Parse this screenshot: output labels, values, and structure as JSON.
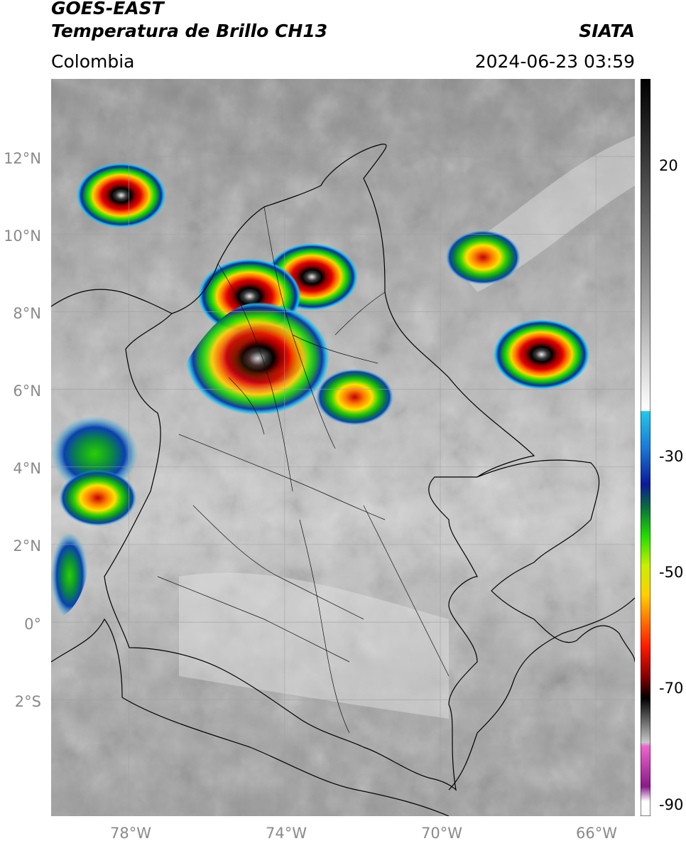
{
  "header": {
    "satellite": "GOES-EAST",
    "product": "Temperatura de Brillo CH13",
    "organization": "SIATA",
    "region": "Colombia",
    "datetime": "2024-06-23 03:59"
  },
  "map": {
    "lat_range": [
      -5,
      14
    ],
    "lon_range": [
      -80,
      -65
    ],
    "lat_ticks": [
      {
        "value": 12,
        "label": "12°N"
      },
      {
        "value": 10,
        "label": "10°N"
      },
      {
        "value": 8,
        "label": "8°N"
      },
      {
        "value": 6,
        "label": "6°N"
      },
      {
        "value": 4,
        "label": "4°N"
      },
      {
        "value": 2,
        "label": "2°N"
      },
      {
        "value": 0,
        "label": "0°"
      },
      {
        "value": -2,
        "label": "2°S"
      }
    ],
    "lon_ticks": [
      {
        "value": -78,
        "label": "78°W"
      },
      {
        "value": -74,
        "label": "74°W"
      },
      {
        "value": -70,
        "label": "70°W"
      },
      {
        "value": -66,
        "label": "66°W"
      }
    ],
    "grid": true
  },
  "colorbar": {
    "range": [
      -92,
      35
    ],
    "ticks": [
      {
        "value": 20,
        "label": "20"
      },
      {
        "value": -30,
        "label": "-30"
      },
      {
        "value": -50,
        "label": "-50"
      },
      {
        "value": -70,
        "label": "-70"
      },
      {
        "value": -90,
        "label": "-90"
      }
    ]
  },
  "storm_cells": [
    {
      "name": "caribbean-cell",
      "lon": -78.2,
      "lat": 11.0,
      "peak": -70
    },
    {
      "name": "north-central-cell",
      "lon": -73.3,
      "lat": 8.9,
      "peak": -72
    },
    {
      "name": "cordoba-cell",
      "lon": -74.9,
      "lat": 8.4,
      "peak": -80
    },
    {
      "name": "antioquia-cell",
      "lon": -74.5,
      "lat": 6.9,
      "peak": -68
    },
    {
      "name": "magdalena-medio-cell",
      "lon": -72.2,
      "lat": 5.8,
      "peak": -62
    },
    {
      "name": "venezuela-cell",
      "lon": -67.4,
      "lat": 6.9,
      "peak": -75
    },
    {
      "name": "venezuela-north-cell",
      "lon": -68.9,
      "lat": 9.4,
      "peak": -60
    },
    {
      "name": "pacific-cell",
      "lon": -78.8,
      "lat": 3.2,
      "peak": -62
    }
  ]
}
